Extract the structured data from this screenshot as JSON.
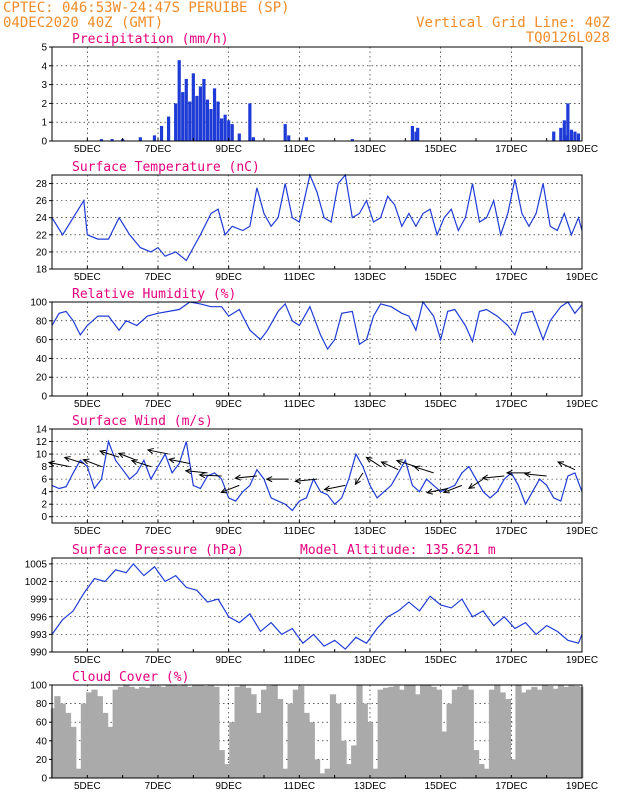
{
  "header": {
    "line1": "CPTEC:   046:53W-24:47S   PERUIBE (SP)",
    "line2": "04DEC2020 40Z (GMT)",
    "right1": "Vertical Grid Line: 40Z",
    "right2": "TQ0126L028"
  },
  "x_days": {
    "start_day": 4,
    "end_day": 19,
    "labels": [
      "5DEC",
      "7DEC",
      "9DEC",
      "11DEC",
      "13DEC",
      "15DEC",
      "17DEC",
      "19DEC"
    ],
    "label_days": [
      5,
      7,
      9,
      11,
      13,
      15,
      17,
      19
    ]
  },
  "panels": [
    {
      "id": "precip",
      "title": "Precipitation (mm/h)",
      "extra": "",
      "ymin": 0,
      "ymax": 5,
      "yticks": [
        0,
        1,
        2,
        3,
        4,
        5
      ],
      "type": "bar"
    },
    {
      "id": "temp",
      "title": "Surface Temperature (nC)",
      "extra": "",
      "ymin": 18,
      "ymax": 29,
      "yticks": [
        18,
        20,
        22,
        24,
        26,
        28
      ],
      "type": "line"
    },
    {
      "id": "rh",
      "title": "Relative Humidity (%)",
      "extra": "",
      "ymin": 0,
      "ymax": 100,
      "yticks": [
        0,
        20,
        40,
        60,
        80,
        100
      ],
      "type": "line"
    },
    {
      "id": "wind",
      "title": "Surface Wind (m/s)",
      "extra": "",
      "ymin": -1,
      "ymax": 14,
      "yticks": [
        0,
        2,
        4,
        6,
        8,
        10,
        12,
        14
      ],
      "type": "line"
    },
    {
      "id": "press",
      "title": "Surface Pressure (hPa)",
      "extra": "Model Altitude: 135.621 m",
      "ymin": 990,
      "ymax": 1006,
      "yticks": [
        990,
        993,
        996,
        999,
        1002,
        1005
      ],
      "type": "line"
    },
    {
      "id": "cloud",
      "title": "Cloud Cover (%)",
      "extra": "",
      "ymin": 0,
      "ymax": 100,
      "yticks": [
        0,
        20,
        40,
        60,
        80,
        100
      ],
      "type": "bar"
    }
  ],
  "colors": {
    "header": "#f28c28",
    "title": "#e6007e",
    "line": "#1f3bd6",
    "bar": "#1f3bd6",
    "cloud": "#aaaaaa"
  },
  "chart_data": [
    {
      "type": "bar",
      "title": "Precipitation (mm/h)",
      "x_unit": "day of Dec 2020",
      "x": [
        5.4,
        5.7,
        6.0,
        6.5,
        6.9,
        7.1,
        7.3,
        7.5,
        7.6,
        7.7,
        7.8,
        7.9,
        8.0,
        8.1,
        8.2,
        8.3,
        8.4,
        8.5,
        8.6,
        8.7,
        8.8,
        8.9,
        9.0,
        9.1,
        9.3,
        9.6,
        9.7,
        10.6,
        10.7,
        11.2,
        12.5,
        14.2,
        14.3,
        14.35,
        18.2,
        18.4,
        18.5,
        18.55,
        18.6,
        18.7,
        18.8,
        18.9
      ],
      "values": [
        0.1,
        0.1,
        0.1,
        0.2,
        0.3,
        0.8,
        1.3,
        2.0,
        4.3,
        2.6,
        3.3,
        2.1,
        3.6,
        2.4,
        2.9,
        3.3,
        2.2,
        1.7,
        2.8,
        2.1,
        1.2,
        1.4,
        1.1,
        0.9,
        0.4,
        2.0,
        0.2,
        0.9,
        0.3,
        0.2,
        0.1,
        0.8,
        0.5,
        0.7,
        0.5,
        0.7,
        1.1,
        0.3,
        2.0,
        0.6,
        0.5,
        0.4
      ]
    },
    {
      "type": "line",
      "title": "Surface Temperature (nC)",
      "x_unit": "day of Dec 2020",
      "x": [
        4.0,
        4.3,
        4.6,
        4.9,
        5.0,
        5.3,
        5.6,
        5.9,
        6.2,
        6.5,
        6.8,
        7.0,
        7.2,
        7.5,
        7.8,
        8.0,
        8.2,
        8.5,
        8.7,
        8.9,
        9.1,
        9.4,
        9.6,
        9.8,
        10.0,
        10.2,
        10.4,
        10.6,
        10.8,
        11.0,
        11.3,
        11.5,
        11.7,
        11.9,
        12.1,
        12.3,
        12.5,
        12.7,
        12.9,
        13.1,
        13.3,
        13.5,
        13.7,
        13.9,
        14.1,
        14.3,
        14.5,
        14.7,
        14.9,
        15.1,
        15.3,
        15.5,
        15.7,
        15.9,
        16.1,
        16.3,
        16.5,
        16.7,
        16.9,
        17.1,
        17.3,
        17.5,
        17.7,
        17.9,
        18.1,
        18.3,
        18.5,
        18.7,
        18.9,
        19.0
      ],
      "y": [
        24.0,
        22.0,
        24.0,
        26.0,
        22.0,
        21.5,
        21.5,
        24.0,
        22.0,
        20.5,
        20.0,
        20.5,
        19.5,
        20.0,
        19.0,
        20.5,
        22.0,
        24.5,
        25.0,
        22.0,
        23.0,
        22.5,
        23.0,
        27.5,
        24.5,
        23.0,
        24.0,
        28.0,
        24.0,
        23.5,
        29.0,
        27.0,
        24.0,
        23.5,
        28.0,
        29.0,
        24.0,
        24.5,
        26.0,
        23.5,
        24.0,
        26.5,
        25.5,
        23.0,
        24.5,
        23.0,
        24.5,
        25.0,
        22.0,
        24.0,
        25.0,
        22.5,
        24.0,
        28.0,
        23.5,
        24.0,
        26.0,
        22.0,
        24.5,
        28.5,
        24.5,
        23.0,
        24.5,
        28.0,
        23.0,
        22.5,
        24.5,
        22.0,
        24.0,
        22.5
      ]
    },
    {
      "type": "line",
      "title": "Relative Humidity (%)",
      "x_unit": "day of Dec 2020",
      "x": [
        4.0,
        4.2,
        4.4,
        4.6,
        4.8,
        5.0,
        5.3,
        5.6,
        5.9,
        6.1,
        6.4,
        6.7,
        7.0,
        7.3,
        7.6,
        7.9,
        8.2,
        8.5,
        8.8,
        9.0,
        9.3,
        9.6,
        9.9,
        10.1,
        10.4,
        10.6,
        10.8,
        11.0,
        11.3,
        11.6,
        11.8,
        12.0,
        12.2,
        12.5,
        12.7,
        12.9,
        13.1,
        13.3,
        13.6,
        13.9,
        14.1,
        14.3,
        14.5,
        14.8,
        15.0,
        15.2,
        15.4,
        15.7,
        15.9,
        16.1,
        16.3,
        16.6,
        16.9,
        17.1,
        17.3,
        17.6,
        17.9,
        18.1,
        18.4,
        18.6,
        18.8,
        19.0
      ],
      "y": [
        75,
        88,
        90,
        80,
        65,
        75,
        85,
        85,
        70,
        80,
        75,
        85,
        88,
        90,
        92,
        100,
        98,
        95,
        95,
        85,
        92,
        70,
        60,
        70,
        90,
        98,
        80,
        75,
        95,
        65,
        50,
        60,
        88,
        90,
        55,
        60,
        85,
        98,
        95,
        88,
        85,
        70,
        100,
        85,
        60,
        90,
        92,
        75,
        58,
        90,
        92,
        85,
        75,
        65,
        88,
        90,
        60,
        80,
        95,
        100,
        88,
        97
      ]
    },
    {
      "type": "line",
      "title": "Surface Wind (m/s)",
      "x_unit": "day of Dec 2020",
      "x": [
        4.0,
        4.2,
        4.4,
        4.6,
        4.8,
        5.0,
        5.2,
        5.4,
        5.6,
        5.8,
        6.0,
        6.2,
        6.4,
        6.6,
        6.8,
        7.0,
        7.2,
        7.4,
        7.6,
        7.8,
        8.0,
        8.2,
        8.4,
        8.6,
        8.8,
        9.0,
        9.2,
        9.4,
        9.6,
        9.8,
        10.0,
        10.2,
        10.4,
        10.6,
        10.8,
        11.0,
        11.2,
        11.4,
        11.6,
        11.8,
        12.0,
        12.2,
        12.4,
        12.6,
        12.8,
        13.0,
        13.2,
        13.4,
        13.6,
        13.8,
        14.0,
        14.2,
        14.4,
        14.6,
        14.8,
        15.0,
        15.2,
        15.4,
        15.6,
        15.8,
        16.0,
        16.2,
        16.4,
        16.6,
        16.8,
        17.0,
        17.2,
        17.4,
        17.6,
        17.8,
        18.0,
        18.2,
        18.4,
        18.6,
        18.8,
        19.0
      ],
      "y": [
        5.0,
        4.5,
        4.8,
        7.0,
        9.0,
        8.0,
        4.5,
        6.0,
        12.0,
        9.0,
        7.5,
        6.0,
        7.0,
        9.0,
        6.0,
        8.0,
        10.0,
        7.0,
        8.5,
        12.0,
        5.0,
        4.5,
        6.5,
        7.0,
        6.0,
        3.0,
        2.5,
        4.0,
        5.0,
        7.5,
        6.0,
        3.0,
        2.5,
        2.0,
        1.0,
        2.5,
        3.0,
        6.0,
        4.0,
        3.5,
        2.0,
        3.0,
        6.0,
        10.0,
        8.0,
        5.0,
        3.0,
        4.0,
        5.0,
        7.0,
        9.0,
        5.0,
        4.0,
        6.0,
        5.0,
        4.0,
        4.5,
        5.0,
        7.0,
        8.0,
        6.0,
        4.0,
        3.0,
        4.0,
        6.0,
        7.0,
        5.0,
        2.0,
        4.0,
        6.0,
        5.0,
        3.0,
        2.5,
        6.5,
        7.0,
        4.0
      ]
    },
    {
      "type": "line",
      "title": "Surface Pressure (hPa)",
      "x_unit": "day of Dec 2020",
      "x": [
        4.0,
        4.3,
        4.6,
        4.9,
        5.2,
        5.5,
        5.8,
        6.1,
        6.3,
        6.6,
        6.9,
        7.2,
        7.5,
        7.8,
        8.1,
        8.4,
        8.7,
        9.0,
        9.3,
        9.6,
        9.9,
        10.2,
        10.5,
        10.8,
        11.1,
        11.4,
        11.7,
        12.0,
        12.3,
        12.6,
        12.9,
        13.2,
        13.5,
        13.8,
        14.1,
        14.4,
        14.7,
        15.0,
        15.3,
        15.6,
        15.9,
        16.2,
        16.5,
        16.8,
        17.1,
        17.4,
        17.7,
        18.0,
        18.3,
        18.6,
        18.9,
        19.0
      ],
      "y": [
        993.0,
        995.5,
        997.0,
        1000.0,
        1002.5,
        1002.0,
        1004.0,
        1003.5,
        1005.0,
        1003.0,
        1004.5,
        1002.0,
        1003.0,
        1001.0,
        1000.5,
        998.5,
        999.0,
        996.0,
        995.0,
        996.5,
        993.5,
        995.0,
        993.0,
        994.0,
        991.5,
        993.0,
        991.0,
        992.0,
        990.5,
        992.5,
        991.5,
        994.0,
        996.0,
        997.0,
        998.5,
        997.0,
        999.5,
        998.0,
        997.5,
        999.0,
        996.0,
        997.0,
        994.5,
        996.0,
        994.0,
        995.0,
        993.0,
        994.5,
        993.5,
        992.0,
        991.5,
        993.0
      ]
    },
    {
      "type": "bar",
      "title": "Cloud Cover (%)",
      "x_unit": "day of Dec 2020",
      "x": [
        4.05,
        4.15,
        4.3,
        4.45,
        4.6,
        4.75,
        4.9,
        5.05,
        5.2,
        5.35,
        5.5,
        5.65,
        5.8,
        5.95,
        6.1,
        6.25,
        6.4,
        6.55,
        6.7,
        6.85,
        7.0,
        7.15,
        7.3,
        7.45,
        7.6,
        7.75,
        7.9,
        8.05,
        8.2,
        8.35,
        8.5,
        8.65,
        8.8,
        8.95,
        9.1,
        9.25,
        9.4,
        9.55,
        9.7,
        9.85,
        10.0,
        10.15,
        10.3,
        10.45,
        10.6,
        10.75,
        10.9,
        11.05,
        11.2,
        11.35,
        11.5,
        11.65,
        11.8,
        11.95,
        12.1,
        12.25,
        12.4,
        12.55,
        12.7,
        12.85,
        13.0,
        13.15,
        13.3,
        13.45,
        13.6,
        13.75,
        13.9,
        14.05,
        14.2,
        14.35,
        14.5,
        14.65,
        14.8,
        14.95,
        15.1,
        15.25,
        15.4,
        15.55,
        15.7,
        15.85,
        16.0,
        16.15,
        16.3,
        16.45,
        16.6,
        16.75,
        16.9,
        17.05,
        17.2,
        17.35,
        17.5,
        17.65,
        17.8,
        17.95,
        18.1,
        18.25,
        18.4,
        18.55,
        18.7,
        18.85,
        18.95
      ],
      "values": [
        75,
        88,
        80,
        70,
        55,
        10,
        80,
        92,
        95,
        88,
        70,
        55,
        95,
        98,
        100,
        98,
        96,
        98,
        97,
        100,
        99,
        98,
        100,
        100,
        99,
        100,
        98,
        100,
        100,
        99,
        100,
        98,
        30,
        15,
        60,
        98,
        100,
        97,
        90,
        70,
        95,
        99,
        100,
        85,
        10,
        80,
        95,
        99,
        70,
        60,
        20,
        5,
        10,
        90,
        80,
        40,
        15,
        35,
        100,
        80,
        60,
        10,
        95,
        97,
        98,
        99,
        95,
        100,
        100,
        90,
        100,
        100,
        98,
        95,
        50,
        80,
        95,
        98,
        100,
        95,
        30,
        15,
        10,
        95,
        100,
        92,
        85,
        20,
        100,
        92,
        95,
        98,
        95,
        100,
        99,
        96,
        100,
        98,
        100,
        99,
        98
      ]
    }
  ],
  "wind_arrows": [
    {
      "day": 4.5,
      "speed": 8.0,
      "dir_deg": 160
    },
    {
      "day": 4.9,
      "speed": 8.5,
      "dir_deg": 150
    },
    {
      "day": 5.4,
      "speed": 8.0,
      "dir_deg": 145
    },
    {
      "day": 5.9,
      "speed": 9.5,
      "dir_deg": 150
    },
    {
      "day": 6.4,
      "speed": 9.0,
      "dir_deg": 145
    },
    {
      "day": 6.8,
      "speed": 8.0,
      "dir_deg": 150
    },
    {
      "day": 7.3,
      "speed": 10.0,
      "dir_deg": 160
    },
    {
      "day": 7.9,
      "speed": 8.5,
      "dir_deg": 160
    },
    {
      "day": 8.4,
      "speed": 7.0,
      "dir_deg": 170
    },
    {
      "day": 8.8,
      "speed": 6.5,
      "dir_deg": 175
    },
    {
      "day": 9.3,
      "speed": 5.0,
      "dir_deg": 215
    },
    {
      "day": 9.8,
      "speed": 6.5,
      "dir_deg": 190
    },
    {
      "day": 10.7,
      "speed": 6.0,
      "dir_deg": 180
    },
    {
      "day": 11.5,
      "speed": 6.0,
      "dir_deg": 190
    },
    {
      "day": 12.3,
      "speed": 5.0,
      "dir_deg": 200
    },
    {
      "day": 12.8,
      "speed": 7.0,
      "dir_deg": 250
    },
    {
      "day": 13.3,
      "speed": 8.0,
      "dir_deg": 130
    },
    {
      "day": 13.8,
      "speed": 7.5,
      "dir_deg": 140
    },
    {
      "day": 14.3,
      "speed": 8.0,
      "dir_deg": 150
    },
    {
      "day": 14.8,
      "speed": 7.0,
      "dir_deg": 150
    },
    {
      "day": 15.2,
      "speed": 4.5,
      "dir_deg": 200
    },
    {
      "day": 15.6,
      "speed": 5.0,
      "dir_deg": 215
    },
    {
      "day": 16.2,
      "speed": 6.0,
      "dir_deg": 230
    },
    {
      "day": 16.8,
      "speed": 6.5,
      "dir_deg": 190
    },
    {
      "day": 17.5,
      "speed": 7.0,
      "dir_deg": 180
    },
    {
      "day": 18.0,
      "speed": 6.5,
      "dir_deg": 170
    },
    {
      "day": 18.8,
      "speed": 7.5,
      "dir_deg": 140
    }
  ]
}
